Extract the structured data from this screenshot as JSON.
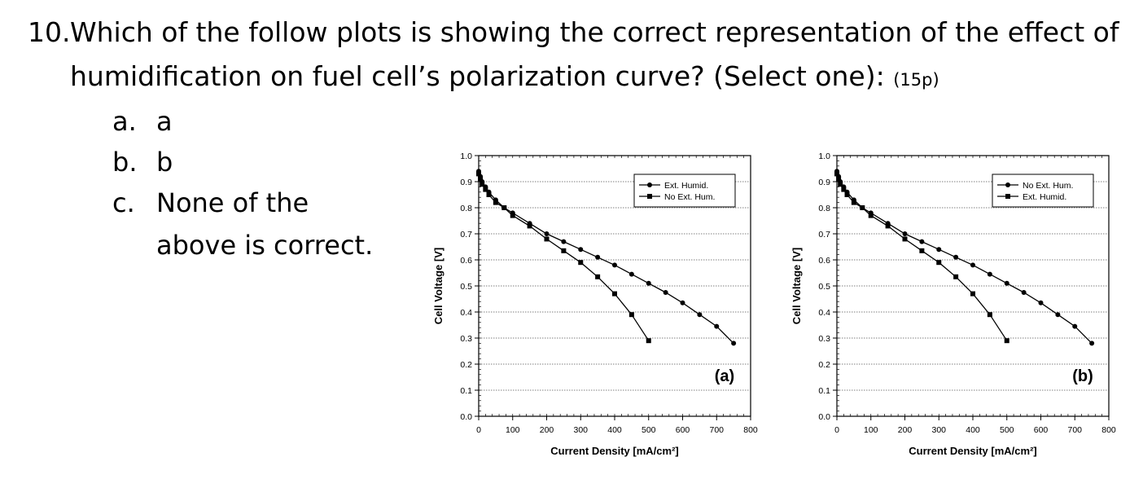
{
  "question": {
    "number": "10.",
    "text_line1": "Which of the follow plots is showing the correct representation of the effect of",
    "text_line2": "humidification on fuel cell’s polarization curve? (Select one):",
    "points": "(15p)"
  },
  "options": [
    {
      "letter": "a.",
      "text": "a"
    },
    {
      "letter": "b.",
      "text": "b"
    },
    {
      "letter": "c.",
      "text_line1": "None of the",
      "text_line2": "above is correct."
    }
  ],
  "chart_data": [
    {
      "type": "line",
      "panel_label": "(a)",
      "xlabel": "Current Density [mA/cm²]",
      "ylabel": "Cell Voltage [V]",
      "xlim": [
        0,
        800
      ],
      "ylim": [
        0,
        1.0
      ],
      "xticks": [
        0,
        100,
        200,
        300,
        400,
        500,
        600,
        700,
        800
      ],
      "yticks": [
        0.0,
        0.1,
        0.2,
        0.3,
        0.4,
        0.5,
        0.6,
        0.7,
        0.8,
        0.9,
        1.0
      ],
      "grid": true,
      "legend_position": "top-right",
      "series": [
        {
          "name": "Ext. Humid.",
          "marker": "circle",
          "x": [
            0,
            5,
            10,
            20,
            30,
            50,
            75,
            100,
            150,
            200,
            250,
            300,
            350,
            400,
            450,
            500,
            550,
            600,
            650,
            700,
            750
          ],
          "y": [
            0.94,
            0.92,
            0.9,
            0.88,
            0.86,
            0.83,
            0.8,
            0.78,
            0.74,
            0.7,
            0.67,
            0.64,
            0.61,
            0.58,
            0.545,
            0.51,
            0.475,
            0.435,
            0.39,
            0.345,
            0.28
          ]
        },
        {
          "name": "No Ext. Hum.",
          "marker": "square",
          "x": [
            0,
            5,
            10,
            20,
            30,
            50,
            75,
            100,
            150,
            200,
            250,
            300,
            350,
            400,
            450,
            500
          ],
          "y": [
            0.93,
            0.91,
            0.89,
            0.87,
            0.85,
            0.82,
            0.8,
            0.77,
            0.73,
            0.68,
            0.635,
            0.59,
            0.535,
            0.47,
            0.39,
            0.29
          ]
        }
      ]
    },
    {
      "type": "line",
      "panel_label": "(b)",
      "xlabel": "Current Density [mA/cm²]",
      "ylabel": "Cell Voltage [V]",
      "xlim": [
        0,
        800
      ],
      "ylim": [
        0,
        1.0
      ],
      "xticks": [
        0,
        100,
        200,
        300,
        400,
        500,
        600,
        700,
        800
      ],
      "yticks": [
        0.0,
        0.1,
        0.2,
        0.3,
        0.4,
        0.5,
        0.6,
        0.7,
        0.8,
        0.9,
        1.0
      ],
      "grid": true,
      "legend_position": "top-right",
      "series": [
        {
          "name": "No Ext. Hum.",
          "marker": "circle",
          "x": [
            0,
            5,
            10,
            20,
            30,
            50,
            75,
            100,
            150,
            200,
            250,
            300,
            350,
            400,
            450,
            500,
            550,
            600,
            650,
            700,
            750
          ],
          "y": [
            0.94,
            0.92,
            0.9,
            0.88,
            0.86,
            0.83,
            0.8,
            0.78,
            0.74,
            0.7,
            0.67,
            0.64,
            0.61,
            0.58,
            0.545,
            0.51,
            0.475,
            0.435,
            0.39,
            0.345,
            0.28
          ]
        },
        {
          "name": "Ext. Humid.",
          "marker": "square",
          "x": [
            0,
            5,
            10,
            20,
            30,
            50,
            75,
            100,
            150,
            200,
            250,
            300,
            350,
            400,
            450,
            500
          ],
          "y": [
            0.93,
            0.91,
            0.89,
            0.87,
            0.85,
            0.82,
            0.8,
            0.77,
            0.73,
            0.68,
            0.635,
            0.59,
            0.535,
            0.47,
            0.39,
            0.29
          ]
        }
      ]
    }
  ]
}
